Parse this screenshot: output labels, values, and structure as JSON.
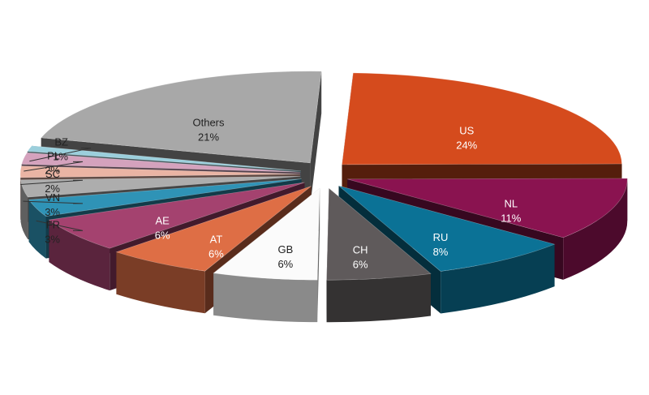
{
  "chart_data": {
    "type": "pie",
    "style": "3d-exploded",
    "title": "",
    "legend": "none",
    "slices": [
      {
        "label": "US",
        "value": 24,
        "text": "24%",
        "color": "#d54b1d",
        "label_pos": "inside"
      },
      {
        "label": "NL",
        "value": 11,
        "text": "11%",
        "color": "#8a1350",
        "label_pos": "inside"
      },
      {
        "label": "RU",
        "value": 8,
        "text": "8%",
        "color": "#0b7296",
        "label_pos": "inside"
      },
      {
        "label": "CH",
        "value": 6,
        "text": "6%",
        "color": "#5f5a5b",
        "label_pos": "inside"
      },
      {
        "label": "GB",
        "value": 6,
        "text": "6%",
        "color": "#fbfbfb",
        "label_pos": "inside"
      },
      {
        "label": "AT",
        "value": 6,
        "text": "6%",
        "color": "#de6e45",
        "label_pos": "inside"
      },
      {
        "label": "AE",
        "value": 6,
        "text": "6%",
        "color": "#a4426f",
        "label_pos": "inside"
      },
      {
        "label": "FR",
        "value": 3,
        "text": "3%",
        "color": "#2f93b6",
        "label_pos": "outside"
      },
      {
        "label": "VN",
        "value": 3,
        "text": "3%",
        "color": "#adadad",
        "label_pos": "outside"
      },
      {
        "label": "SC",
        "value": 2,
        "text": "2%",
        "color": "#eab4a4",
        "label_pos": "outside"
      },
      {
        "label": "PL",
        "value": 2,
        "text": "2%",
        "color": "#d4a2bd",
        "label_pos": "outside"
      },
      {
        "label": "BZ",
        "value": 1,
        "text": "1%",
        "color": "#9bcfdc",
        "label_pos": "outside"
      },
      {
        "label": "Others",
        "value": 21,
        "text": "21%",
        "color": "#a8a8a8",
        "label_pos": "inside"
      }
    ]
  }
}
